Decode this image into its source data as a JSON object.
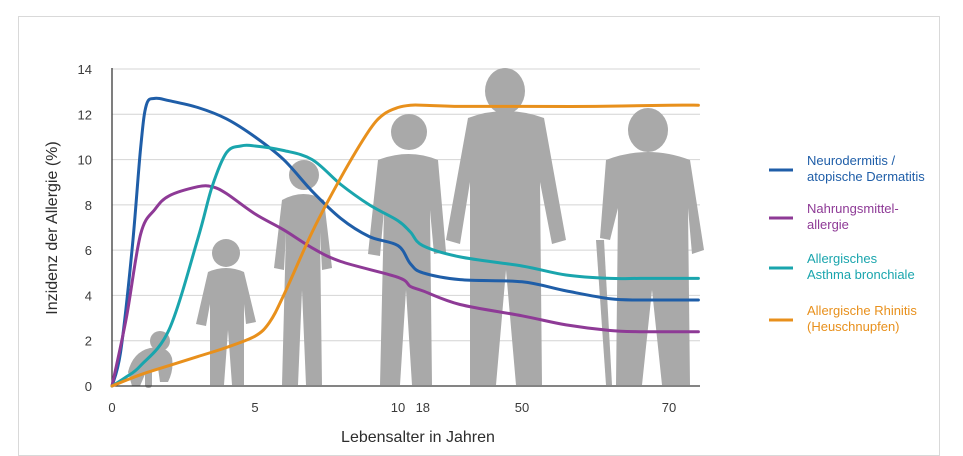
{
  "chart_data": {
    "type": "line",
    "title": "",
    "xlabel": "Lebensalter in Jahren",
    "ylabel": "Inzidenz der Allergie (%)",
    "ylim": [
      0,
      14
    ],
    "yticks": [
      0,
      2,
      4,
      6,
      8,
      10,
      12,
      14
    ],
    "x_scale": "piecewise (0–10 years, 10–50 years, 50–70 years compressed)",
    "xticks": [
      0,
      5,
      10,
      18,
      50,
      70
    ],
    "grid": true,
    "legend_position": "right",
    "series": [
      {
        "name": "Neurodermitis / atopische Dermatitis",
        "color": "#1f5ea8",
        "points": [
          [
            0,
            0
          ],
          [
            0.3,
            1.5
          ],
          [
            0.7,
            6
          ],
          [
            1,
            10.5
          ],
          [
            1.2,
            12.4
          ],
          [
            1.5,
            12.7
          ],
          [
            2,
            12.6
          ],
          [
            3,
            12.3
          ],
          [
            4,
            11.8
          ],
          [
            5,
            11
          ],
          [
            6,
            10
          ],
          [
            7,
            8.6
          ],
          [
            8,
            7.4
          ],
          [
            9,
            6.6
          ],
          [
            10,
            6.2
          ],
          [
            14,
            5.4
          ],
          [
            18,
            5
          ],
          [
            30,
            4.7
          ],
          [
            50,
            4.6
          ],
          [
            56,
            4.2
          ],
          [
            62,
            3.85
          ],
          [
            66,
            3.8
          ],
          [
            70,
            3.8
          ],
          [
            74,
            3.8
          ]
        ]
      },
      {
        "name": "Nahrungsmittel-allergie",
        "color": "#8e3a96",
        "points": [
          [
            0,
            0
          ],
          [
            0.5,
            3
          ],
          [
            1,
            6.7
          ],
          [
            1.5,
            7.8
          ],
          [
            2,
            8.4
          ],
          [
            3,
            8.8
          ],
          [
            3.5,
            8.8
          ],
          [
            4,
            8.5
          ],
          [
            5,
            7.6
          ],
          [
            6,
            6.9
          ],
          [
            7,
            6.1
          ],
          [
            8,
            5.5
          ],
          [
            10,
            4.8
          ],
          [
            14,
            4.4
          ],
          [
            18,
            4.2
          ],
          [
            30,
            3.6
          ],
          [
            50,
            3.1
          ],
          [
            56,
            2.7
          ],
          [
            62,
            2.45
          ],
          [
            66,
            2.4
          ],
          [
            70,
            2.4
          ],
          [
            74,
            2.4
          ]
        ]
      },
      {
        "name": "Allergisches Asthma bronchiale",
        "color": "#1aa5ad",
        "points": [
          [
            0,
            0
          ],
          [
            0.5,
            0.4
          ],
          [
            1,
            0.9
          ],
          [
            2,
            2.5
          ],
          [
            3,
            6.5
          ],
          [
            3.5,
            8.8
          ],
          [
            4,
            10.3
          ],
          [
            4.5,
            10.6
          ],
          [
            5,
            10.6
          ],
          [
            6,
            10.4
          ],
          [
            7,
            10
          ],
          [
            8,
            8.9
          ],
          [
            9,
            8
          ],
          [
            10,
            7.3
          ],
          [
            14,
            6.8
          ],
          [
            18,
            6.2
          ],
          [
            30,
            5.7
          ],
          [
            50,
            5.3
          ],
          [
            56,
            4.9
          ],
          [
            62,
            4.75
          ],
          [
            66,
            4.75
          ],
          [
            70,
            4.75
          ],
          [
            74,
            4.75
          ]
        ]
      },
      {
        "name": "Allergische Rhinitis (Heuschnupfen)",
        "color": "#e8901c",
        "points": [
          [
            0,
            0
          ],
          [
            1,
            0.5
          ],
          [
            2,
            0.9
          ],
          [
            3,
            1.3
          ],
          [
            4,
            1.7
          ],
          [
            5,
            2.2
          ],
          [
            5.5,
            2.8
          ],
          [
            6,
            4
          ],
          [
            7,
            6.8
          ],
          [
            8,
            9.2
          ],
          [
            9,
            11.3
          ],
          [
            9.5,
            12
          ],
          [
            10,
            12.3
          ],
          [
            14,
            12.4
          ],
          [
            18,
            12.4
          ],
          [
            30,
            12.35
          ],
          [
            50,
            12.35
          ],
          [
            60,
            12.35
          ],
          [
            70,
            12.4
          ],
          [
            74,
            12.4
          ]
        ]
      }
    ]
  },
  "legend": {
    "items": [
      {
        "color": "#1f5ea8",
        "line1": "Neurodermitis /",
        "line2": "atopische Dermatitis"
      },
      {
        "color": "#8e3a96",
        "line1": "Nahrungsmittel-",
        "line2": "allergie"
      },
      {
        "color": "#1aa5ad",
        "line1": "Allergisches",
        "line2": "Asthma bronchiale"
      },
      {
        "color": "#e8901c",
        "line1": "Allergische Rhinitis",
        "line2": "(Heuschnupfen)"
      }
    ]
  },
  "colors": {
    "axis": "#3a3a3a",
    "grid": "#d4d4d4",
    "silhouette": "#a9a9a9"
  },
  "silhouettes": [
    "crawling-baby-icon",
    "toddler-icon",
    "child-icon",
    "teenager-icon",
    "adult-man-icon",
    "senior-with-cane-icon"
  ]
}
